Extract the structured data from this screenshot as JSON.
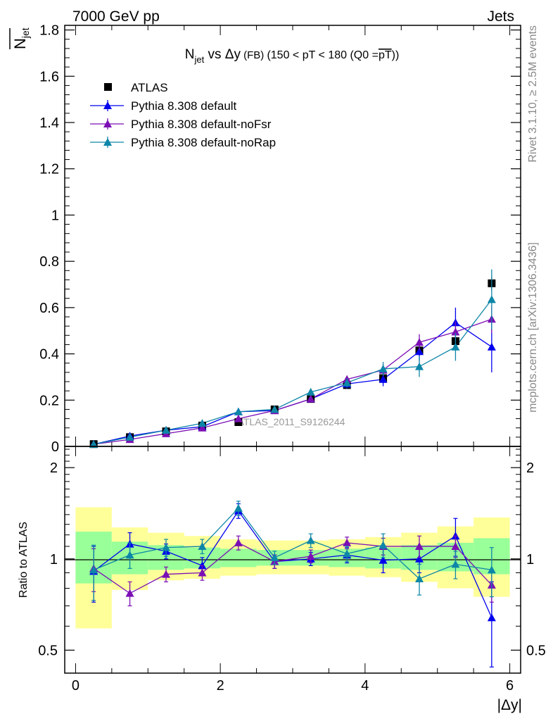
{
  "header": {
    "left": "7000 GeV pp",
    "right": "Jets"
  },
  "side_labels": {
    "rivet": "Rivet 3.1.10, ≥ 2.5M events",
    "mcplots": "mcplots.cern.ch [arXiv:1306.3436]"
  },
  "title": {
    "main_prefix": "N",
    "main_sub": "jet",
    "main_mid": " vs ",
    "main_var": "Δy",
    "small": " (FB) ",
    "cut": "(150 < pT < 180 (Q0 =",
    "cut_over": "pT",
    "cut_end": "))"
  },
  "watermark": "ATLAS_2011_S9126244",
  "ylabel": {
    "main": "N",
    "main_sub": "jet",
    "ratio": "Ratio to ATLAS"
  },
  "xlabel": "|Δy|",
  "colors": {
    "data": "#000000",
    "default": "#0000ee",
    "noFsr": "#7b0fb5",
    "noRap": "#0e86a8",
    "band_yellow": "#ffff99",
    "band_green": "#99ff99"
  },
  "chart_data": [
    {
      "type": "scatter",
      "x": [
        0.25,
        0.75,
        1.25,
        1.75,
        2.25,
        2.75,
        3.25,
        3.75,
        4.25,
        4.75,
        5.25,
        5.75
      ],
      "xlim": [
        -0.15,
        6.15
      ],
      "ylim": [
        0,
        1.82
      ],
      "yticks": [
        0,
        0.2,
        0.4,
        0.6,
        0.8,
        1,
        1.2,
        1.4,
        1.6,
        1.8
      ],
      "ytick_labels": [
        "0",
        "0.2",
        "0.4",
        "0.6",
        "0.8",
        "1",
        "1.2",
        "1.4",
        "1.6",
        "1.8"
      ],
      "series": [
        {
          "name": "ATLAS",
          "key": "data",
          "marker": "square",
          "values": [
            0.01,
            0.04,
            0.065,
            0.09,
            0.105,
            0.16,
            0.205,
            0.265,
            0.295,
            0.415,
            0.455,
            0.705
          ],
          "errors": [
            0.003,
            0.005,
            0.006,
            0.007,
            0.008,
            0.01,
            0.012,
            0.015,
            0.02,
            0.02,
            0.02,
            0.03
          ]
        },
        {
          "name": "Pythia 8.308 default",
          "key": "default",
          "marker": "triangle",
          "values": [
            0.009,
            0.045,
            0.07,
            0.085,
            0.15,
            0.155,
            0.205,
            0.27,
            0.29,
            0.41,
            0.535,
            0.43
          ],
          "errors": [
            0.002,
            0.004,
            0.005,
            0.006,
            0.01,
            0.01,
            0.012,
            0.02,
            0.03,
            0.04,
            0.065,
            0.11
          ]
        },
        {
          "name": "Pythia 8.308 default-noFsr",
          "key": "noFsr",
          "marker": "triangle",
          "values": [
            0.009,
            0.03,
            0.055,
            0.08,
            0.12,
            0.155,
            0.205,
            0.29,
            0.33,
            0.45,
            0.495,
            0.55
          ],
          "errors": [
            0.002,
            0.004,
            0.005,
            0.006,
            0.008,
            0.01,
            0.012,
            0.015,
            0.025,
            0.035,
            0.045,
            0.06
          ]
        },
        {
          "name": "Pythia 8.308 default-noRap",
          "key": "noRap",
          "marker": "triangle",
          "values": [
            0.009,
            0.04,
            0.07,
            0.1,
            0.15,
            0.16,
            0.235,
            0.275,
            0.335,
            0.345,
            0.43,
            0.635
          ],
          "errors": [
            0.002,
            0.005,
            0.006,
            0.007,
            0.01,
            0.011,
            0.014,
            0.02,
            0.03,
            0.045,
            0.06,
            0.13
          ]
        }
      ]
    },
    {
      "type": "scatter",
      "ylabel": "Ratio to ATLAS",
      "xlabel": "|Δy|",
      "log_y": true,
      "x": [
        0.25,
        0.75,
        1.25,
        1.75,
        2.25,
        2.75,
        3.25,
        3.75,
        4.25,
        4.75,
        5.25,
        5.75
      ],
      "xlim": [
        -0.15,
        6.15
      ],
      "ylim": [
        0.42,
        2.35
      ],
      "xticks": [
        0,
        2,
        4,
        6
      ],
      "xtick_labels": [
        "0",
        "2",
        "4",
        "6"
      ],
      "yticks": [
        0.5,
        1,
        2
      ],
      "ytick_labels": [
        "0.5",
        "1",
        "2"
      ],
      "bands": {
        "yellow_lo": [
          0.59,
          0.79,
          0.85,
          0.86,
          0.88,
          0.89,
          0.89,
          0.88,
          0.87,
          0.84,
          0.8,
          0.75
        ],
        "yellow_hi": [
          1.48,
          1.27,
          1.22,
          1.19,
          1.16,
          1.15,
          1.15,
          1.16,
          1.18,
          1.22,
          1.28,
          1.37
        ],
        "green_lo": [
          0.83,
          0.89,
          0.92,
          0.93,
          0.94,
          0.95,
          0.95,
          0.94,
          0.93,
          0.92,
          0.91,
          0.89
        ],
        "green_hi": [
          1.23,
          1.14,
          1.11,
          1.09,
          1.08,
          1.07,
          1.07,
          1.08,
          1.09,
          1.11,
          1.13,
          1.17
        ]
      },
      "series": [
        {
          "name": "Pythia 8.308 default",
          "key": "default",
          "values": [
            0.91,
            1.12,
            1.06,
            0.95,
            1.44,
            0.98,
            1.0,
            1.03,
            0.99,
            1.0,
            1.19,
            0.64
          ],
          "errors": [
            0.19,
            0.1,
            0.06,
            0.06,
            0.08,
            0.05,
            0.05,
            0.06,
            0.09,
            0.1,
            0.17,
            0.2
          ]
        },
        {
          "name": "Pythia 8.308 default-noFsr",
          "key": "noFsr",
          "values": [
            0.93,
            0.77,
            0.89,
            0.9,
            1.13,
            0.98,
            1.02,
            1.13,
            1.1,
            1.1,
            1.1,
            0.82
          ],
          "errors": [
            0.15,
            0.07,
            0.05,
            0.05,
            0.06,
            0.05,
            0.05,
            0.05,
            0.07,
            0.09,
            0.09,
            0.1
          ]
        },
        {
          "name": "Pythia 8.308 default-noRap",
          "key": "noRap",
          "values": [
            0.92,
            1.03,
            1.09,
            1.1,
            1.47,
            1.01,
            1.15,
            1.04,
            1.11,
            0.86,
            0.96,
            0.92
          ],
          "errors": [
            0.19,
            0.1,
            0.07,
            0.06,
            0.08,
            0.05,
            0.06,
            0.06,
            0.1,
            0.1,
            0.1,
            0.17
          ]
        }
      ]
    }
  ]
}
